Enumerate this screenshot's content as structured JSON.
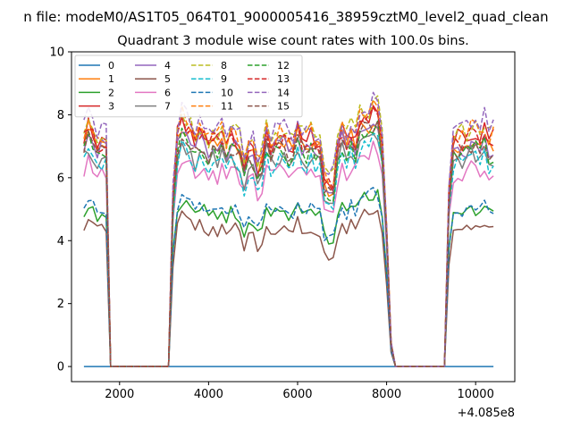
{
  "chart_data": {
    "type": "line",
    "suptitle": "n file: modeM0/AS1T05_064T01_9000005416_38959cztM0_level2_quad_clean",
    "title": "Quadrant 3 module wise count rates with 100.0s bins.",
    "xlabel": "",
    "ylabel": "",
    "x_offset_label": "+4.085e8",
    "xlim": [
      920,
      10880
    ],
    "ylim": [
      -0.48,
      10.0
    ],
    "x_ticks": [
      2000,
      4000,
      6000,
      8000,
      10000
    ],
    "x_tick_labels": [
      "2000",
      "4000",
      "6000",
      "8000",
      "10000"
    ],
    "y_ticks": [
      0,
      2,
      4,
      6,
      8,
      10
    ],
    "y_tick_labels": [
      "0",
      "2",
      "4",
      "6",
      "8",
      "10"
    ],
    "grid": false,
    "legend": {
      "placement": "top-left",
      "columns": 4
    },
    "segments": [
      {
        "x_start": 1200,
        "n_points": 6,
        "phase": "on"
      },
      {
        "x_start": 1600,
        "n_points": 2,
        "phase": "drop"
      },
      {
        "x_start": 1700,
        "x_end": 3100,
        "phase": "off"
      },
      {
        "x_start": 3100,
        "n_points": 2,
        "phase": "rise"
      },
      {
        "x_start": 3200,
        "n_points": 48,
        "phase": "on"
      },
      {
        "x_start": 8000,
        "n_points": 2,
        "phase": "drop"
      },
      {
        "x_start": 8200,
        "x_end": 9300,
        "phase": "off"
      },
      {
        "x_start": 9300,
        "n_points": 2,
        "phase": "rise"
      },
      {
        "x_start": 9500,
        "n_points": 10,
        "phase": "on"
      }
    ],
    "series": [
      {
        "name": "0",
        "color": "#1f77b4",
        "dash": "solid",
        "level": 0.0
      },
      {
        "name": "1",
        "color": "#ff7f0e",
        "dash": "solid",
        "level": 7.1
      },
      {
        "name": "2",
        "color": "#2ca02c",
        "dash": "solid",
        "level": 4.9
      },
      {
        "name": "3",
        "color": "#d62728",
        "dash": "solid",
        "level": 7.3
      },
      {
        "name": "4",
        "color": "#9467bd",
        "dash": "solid",
        "level": 7.0
      },
      {
        "name": "5",
        "color": "#8c564b",
        "dash": "solid",
        "level": 4.4
      },
      {
        "name": "6",
        "color": "#e377c2",
        "dash": "solid",
        "level": 6.2
      },
      {
        "name": "7",
        "color": "#7f7f7f",
        "dash": "solid",
        "level": 6.6
      },
      {
        "name": "8",
        "color": "#bcbd22",
        "dash": "dashed",
        "level": 7.5
      },
      {
        "name": "9",
        "color": "#17becf",
        "dash": "dashed",
        "level": 6.5
      },
      {
        "name": "10",
        "color": "#1f77b4",
        "dash": "dashed",
        "level": 5.0
      },
      {
        "name": "11",
        "color": "#ff7f0e",
        "dash": "dashed",
        "level": 7.4
      },
      {
        "name": "12",
        "color": "#2ca02c",
        "dash": "dashed",
        "level": 6.8
      },
      {
        "name": "13",
        "color": "#d62728",
        "dash": "dashed",
        "level": 7.2
      },
      {
        "name": "14",
        "color": "#9467bd",
        "dash": "dashed",
        "level": 7.6
      },
      {
        "name": "15",
        "color": "#8c564b",
        "dash": "dashed",
        "level": 6.9
      }
    ]
  }
}
